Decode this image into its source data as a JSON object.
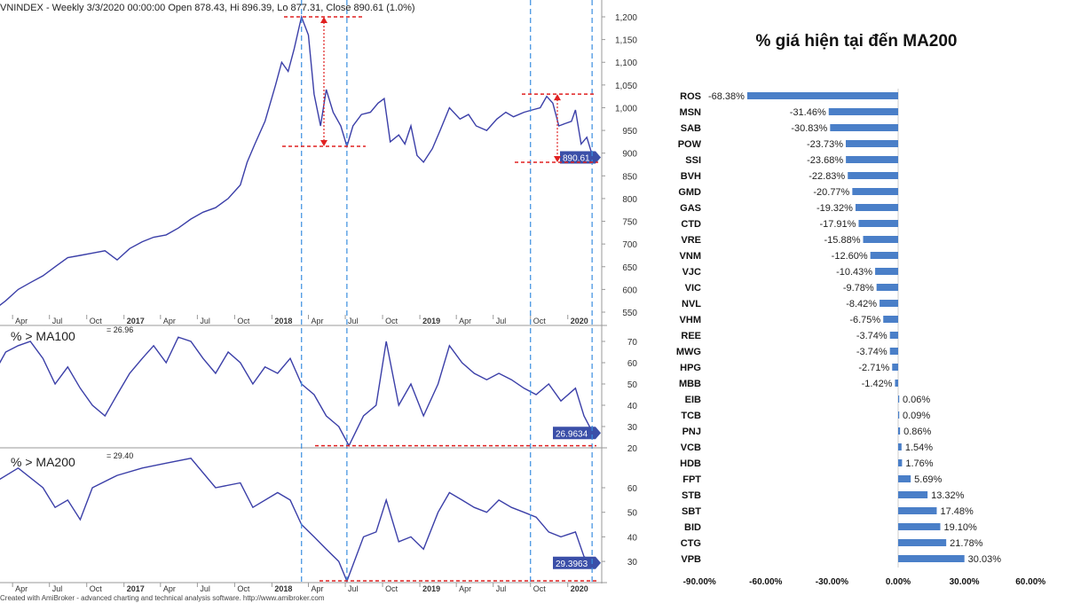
{
  "chart_data": [
    {
      "type": "line",
      "title": "VNINDEX - Weekly 3/3/2020 00:00:00 Open 878.43, Hi 896.39, Lo 877.31, Close 890.61 (1.0%)",
      "last_value_label": "890.61",
      "ylim": [
        550,
        1200
      ],
      "yticks": [
        550,
        600,
        650,
        700,
        750,
        800,
        850,
        900,
        950,
        1000,
        1050,
        1100,
        1150,
        1200
      ],
      "series": [
        {
          "color": "#3b3fa8",
          "points": [
            [
              "2016-02-15",
              555
            ],
            [
              "2016-03-15",
              575
            ],
            [
              "2016-04-15",
              600
            ],
            [
              "2016-05-15",
              615
            ],
            [
              "2016-06-15",
              630
            ],
            [
              "2016-07-15",
              650
            ],
            [
              "2016-08-15",
              670
            ],
            [
              "2016-09-15",
              675
            ],
            [
              "2016-10-15",
              680
            ],
            [
              "2016-11-15",
              685
            ],
            [
              "2016-12-15",
              665
            ],
            [
              "2017-01-15",
              690
            ],
            [
              "2017-02-15",
              705
            ],
            [
              "2017-03-15",
              715
            ],
            [
              "2017-04-15",
              720
            ],
            [
              "2017-05-15",
              735
            ],
            [
              "2017-06-15",
              755
            ],
            [
              "2017-07-15",
              770
            ],
            [
              "2017-08-15",
              780
            ],
            [
              "2017-09-15",
              800
            ],
            [
              "2017-10-15",
              830
            ],
            [
              "2017-11-01",
              880
            ],
            [
              "2017-11-20",
              920
            ],
            [
              "2017-12-15",
              970
            ],
            [
              "2018-01-10",
              1050
            ],
            [
              "2018-01-25",
              1100
            ],
            [
              "2018-02-10",
              1080
            ],
            [
              "2018-02-25",
              1130
            ],
            [
              "2018-03-15",
              1200
            ],
            [
              "2018-04-01",
              1160
            ],
            [
              "2018-04-15",
              1030
            ],
            [
              "2018-05-01",
              960
            ],
            [
              "2018-05-15",
              1040
            ],
            [
              "2018-06-01",
              990
            ],
            [
              "2018-06-20",
              960
            ],
            [
              "2018-07-05",
              915
            ],
            [
              "2018-07-20",
              960
            ],
            [
              "2018-08-10",
              985
            ],
            [
              "2018-09-01",
              990
            ],
            [
              "2018-09-20",
              1010
            ],
            [
              "2018-10-05",
              1020
            ],
            [
              "2018-10-20",
              925
            ],
            [
              "2018-11-10",
              940
            ],
            [
              "2018-11-25",
              920
            ],
            [
              "2018-12-10",
              960
            ],
            [
              "2018-12-25",
              895
            ],
            [
              "2019-01-10",
              880
            ],
            [
              "2019-02-01",
              910
            ],
            [
              "2019-02-20",
              950
            ],
            [
              "2019-03-15",
              1000
            ],
            [
              "2019-04-10",
              975
            ],
            [
              "2019-05-01",
              985
            ],
            [
              "2019-05-20",
              960
            ],
            [
              "2019-06-15",
              950
            ],
            [
              "2019-07-10",
              975
            ],
            [
              "2019-08-01",
              990
            ],
            [
              "2019-08-20",
              980
            ],
            [
              "2019-09-15",
              990
            ],
            [
              "2019-10-05",
              995
            ],
            [
              "2019-10-25",
              1000
            ],
            [
              "2019-11-10",
              1025
            ],
            [
              "2019-11-25",
              1010
            ],
            [
              "2019-12-10",
              960
            ],
            [
              "2019-12-25",
              965
            ],
            [
              "2020-01-10",
              970
            ],
            [
              "2020-01-20",
              995
            ],
            [
              "2020-02-03",
              920
            ],
            [
              "2020-02-17",
              935
            ],
            [
              "2020-03-03",
              890.61
            ]
          ]
        }
      ],
      "annotations": {
        "vertical_dashed_color": "#3a8ee0",
        "horizontal_dashed_color": "#e02020"
      }
    },
    {
      "type": "line",
      "title": "% > MA100",
      "value_label": "= 26.96",
      "last_value_label": "26.9634",
      "ylim": [
        20,
        70
      ],
      "yticks": [
        20,
        30,
        40,
        50,
        60,
        70
      ],
      "series": [
        {
          "color": "#3b3fa8",
          "points": [
            [
              "2016-02-15",
              55
            ],
            [
              "2016-03-15",
              65
            ],
            [
              "2016-04-15",
              68
            ],
            [
              "2016-05-15",
              70
            ],
            [
              "2016-06-15",
              62
            ],
            [
              "2016-07-15",
              50
            ],
            [
              "2016-08-15",
              58
            ],
            [
              "2016-09-15",
              48
            ],
            [
              "2016-10-15",
              40
            ],
            [
              "2016-11-15",
              35
            ],
            [
              "2016-12-15",
              45
            ],
            [
              "2017-01-15",
              55
            ],
            [
              "2017-02-15",
              62
            ],
            [
              "2017-03-15",
              68
            ],
            [
              "2017-04-15",
              60
            ],
            [
              "2017-05-15",
              72
            ],
            [
              "2017-06-15",
              70
            ],
            [
              "2017-07-15",
              62
            ],
            [
              "2017-08-15",
              55
            ],
            [
              "2017-09-15",
              65
            ],
            [
              "2017-10-15",
              60
            ],
            [
              "2017-11-15",
              50
            ],
            [
              "2017-12-15",
              58
            ],
            [
              "2018-01-15",
              55
            ],
            [
              "2018-02-15",
              62
            ],
            [
              "2018-03-15",
              50
            ],
            [
              "2018-04-15",
              45
            ],
            [
              "2018-05-15",
              35
            ],
            [
              "2018-06-15",
              30
            ],
            [
              "2018-07-10",
              21
            ],
            [
              "2018-08-15",
              35
            ],
            [
              "2018-09-15",
              40
            ],
            [
              "2018-10-10",
              70
            ],
            [
              "2018-11-10",
              40
            ],
            [
              "2018-12-10",
              50
            ],
            [
              "2019-01-10",
              35
            ],
            [
              "2019-02-15",
              50
            ],
            [
              "2019-03-15",
              68
            ],
            [
              "2019-04-15",
              60
            ],
            [
              "2019-05-15",
              55
            ],
            [
              "2019-06-15",
              52
            ],
            [
              "2019-07-15",
              55
            ],
            [
              "2019-08-15",
              52
            ],
            [
              "2019-09-15",
              48
            ],
            [
              "2019-10-15",
              45
            ],
            [
              "2019-11-15",
              50
            ],
            [
              "2019-12-15",
              42
            ],
            [
              "2020-01-20",
              48
            ],
            [
              "2020-02-10",
              35
            ],
            [
              "2020-03-03",
              26.96
            ]
          ]
        }
      ]
    },
    {
      "type": "line",
      "title": "% > MA200",
      "value_label": "= 29.40",
      "last_value_label": "29.3963",
      "ylim": [
        28,
        70
      ],
      "yticks": [
        30,
        40,
        50,
        60
      ],
      "series": [
        {
          "color": "#3b3fa8",
          "points": [
            [
              "2016-02-15",
              62
            ],
            [
              "2016-04-15",
              68
            ],
            [
              "2016-06-15",
              60
            ],
            [
              "2016-07-15",
              52
            ],
            [
              "2016-08-15",
              55
            ],
            [
              "2016-09-15",
              47
            ],
            [
              "2016-10-15",
              60
            ],
            [
              "2016-12-15",
              65
            ],
            [
              "2017-02-15",
              68
            ],
            [
              "2017-04-15",
              70
            ],
            [
              "2017-06-15",
              72
            ],
            [
              "2017-08-15",
              60
            ],
            [
              "2017-10-15",
              62
            ],
            [
              "2017-11-15",
              52
            ],
            [
              "2018-01-15",
              58
            ],
            [
              "2018-02-15",
              55
            ],
            [
              "2018-03-15",
              45
            ],
            [
              "2018-04-15",
              40
            ],
            [
              "2018-05-15",
              35
            ],
            [
              "2018-06-15",
              30
            ],
            [
              "2018-07-05",
              22
            ],
            [
              "2018-08-15",
              40
            ],
            [
              "2018-09-15",
              42
            ],
            [
              "2018-10-10",
              55
            ],
            [
              "2018-11-10",
              38
            ],
            [
              "2018-12-10",
              40
            ],
            [
              "2019-01-10",
              35
            ],
            [
              "2019-02-15",
              50
            ],
            [
              "2019-03-15",
              58
            ],
            [
              "2019-04-15",
              55
            ],
            [
              "2019-05-15",
              52
            ],
            [
              "2019-06-15",
              50
            ],
            [
              "2019-07-15",
              55
            ],
            [
              "2019-08-15",
              52
            ],
            [
              "2019-09-15",
              50
            ],
            [
              "2019-10-15",
              48
            ],
            [
              "2019-11-15",
              42
            ],
            [
              "2019-12-15",
              40
            ],
            [
              "2020-01-20",
              42
            ],
            [
              "2020-02-10",
              32
            ],
            [
              "2020-03-03",
              29.4
            ]
          ]
        }
      ]
    },
    {
      "type": "bar",
      "orientation": "horizontal",
      "title": "% giá hiện tại đến MA200",
      "xlim": [
        -90,
        60
      ],
      "xticks": [
        "-90.00%",
        "-60.00%",
        "-30.00%",
        "0.00%",
        "30.00%",
        "60.00%"
      ],
      "bar_color": "#4a7fc8",
      "categories": [
        "ROS",
        "MSN",
        "SAB",
        "POW",
        "SSI",
        "BVH",
        "GMD",
        "GAS",
        "CTD",
        "VRE",
        "VNM",
        "VJC",
        "VIC",
        "NVL",
        "VHM",
        "REE",
        "MWG",
        "HPG",
        "MBB",
        "EIB",
        "TCB",
        "PNJ",
        "VCB",
        "HDB",
        "FPT",
        "STB",
        "SBT",
        "BID",
        "CTG",
        "VPB"
      ],
      "values": [
        -68.38,
        -31.46,
        -30.83,
        -23.73,
        -23.68,
        -22.83,
        -20.77,
        -19.32,
        -17.91,
        -15.88,
        -12.6,
        -10.43,
        -9.78,
        -8.42,
        -6.75,
        -3.74,
        -3.74,
        -2.71,
        -1.42,
        0.06,
        0.09,
        0.86,
        1.54,
        1.76,
        5.69,
        13.32,
        17.48,
        19.1,
        21.78,
        30.03
      ],
      "labels": [
        "-68.38%",
        "-31.46%",
        "-30.83%",
        "-23.73%",
        "-23.68%",
        "-22.83%",
        "-20.77%",
        "-19.32%",
        "-17.91%",
        "-15.88%",
        "-12.60%",
        "-10.43%",
        "-9.78%",
        "-8.42%",
        "-6.75%",
        "-3.74%",
        "-3.74%",
        "-2.71%",
        "-1.42%",
        "0.06%",
        "0.09%",
        "0.86%",
        "1.54%",
        "1.76%",
        "5.69%",
        "13.32%",
        "17.48%",
        "19.10%",
        "21.78%",
        "30.03%"
      ]
    }
  ],
  "time_axis": [
    {
      "date": "2016-04-01",
      "label": "Apr",
      "bold": false
    },
    {
      "date": "2016-07-01",
      "label": "Jul",
      "bold": false
    },
    {
      "date": "2016-10-01",
      "label": "Oct",
      "bold": false
    },
    {
      "date": "2017-01-01",
      "label": "2017",
      "bold": true
    },
    {
      "date": "2017-04-01",
      "label": "Apr",
      "bold": false
    },
    {
      "date": "2017-07-01",
      "label": "Jul",
      "bold": false
    },
    {
      "date": "2017-10-01",
      "label": "Oct",
      "bold": false
    },
    {
      "date": "2018-01-01",
      "label": "2018",
      "bold": true
    },
    {
      "date": "2018-04-01",
      "label": "Apr",
      "bold": false
    },
    {
      "date": "2018-07-01",
      "label": "Jul",
      "bold": false
    },
    {
      "date": "2018-10-01",
      "label": "Oct",
      "bold": false
    },
    {
      "date": "2019-01-01",
      "label": "2019",
      "bold": true
    },
    {
      "date": "2019-04-01",
      "label": "Apr",
      "bold": false
    },
    {
      "date": "2019-07-01",
      "label": "Jul",
      "bold": false
    },
    {
      "date": "2019-10-01",
      "label": "Oct",
      "bold": false
    },
    {
      "date": "2020-01-01",
      "label": "2020",
      "bold": true
    }
  ],
  "footer": "Created with AmiBroker - advanced charting and technical analysis software. http://www.amibroker.com"
}
